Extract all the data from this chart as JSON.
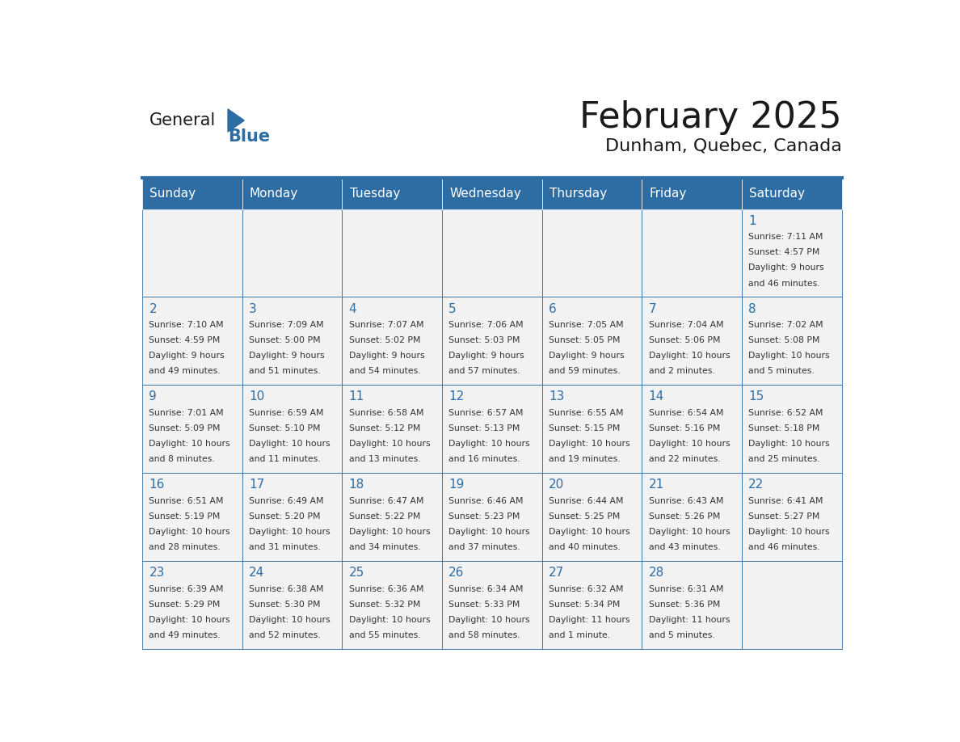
{
  "title": "February 2025",
  "subtitle": "Dunham, Quebec, Canada",
  "header_bg": "#2E6DA4",
  "header_text_color": "#FFFFFF",
  "cell_bg": "#F2F2F2",
  "border_color": "#2E6DA4",
  "day_names": [
    "Sunday",
    "Monday",
    "Tuesday",
    "Wednesday",
    "Thursday",
    "Friday",
    "Saturday"
  ],
  "days": [
    {
      "day": 1,
      "col": 6,
      "row": 0,
      "sunrise": "7:11 AM",
      "sunset": "4:57 PM",
      "daylight": "9 hours and 46 minutes."
    },
    {
      "day": 2,
      "col": 0,
      "row": 1,
      "sunrise": "7:10 AM",
      "sunset": "4:59 PM",
      "daylight": "9 hours and 49 minutes."
    },
    {
      "day": 3,
      "col": 1,
      "row": 1,
      "sunrise": "7:09 AM",
      "sunset": "5:00 PM",
      "daylight": "9 hours and 51 minutes."
    },
    {
      "day": 4,
      "col": 2,
      "row": 1,
      "sunrise": "7:07 AM",
      "sunset": "5:02 PM",
      "daylight": "9 hours and 54 minutes."
    },
    {
      "day": 5,
      "col": 3,
      "row": 1,
      "sunrise": "7:06 AM",
      "sunset": "5:03 PM",
      "daylight": "9 hours and 57 minutes."
    },
    {
      "day": 6,
      "col": 4,
      "row": 1,
      "sunrise": "7:05 AM",
      "sunset": "5:05 PM",
      "daylight": "9 hours and 59 minutes."
    },
    {
      "day": 7,
      "col": 5,
      "row": 1,
      "sunrise": "7:04 AM",
      "sunset": "5:06 PM",
      "daylight": "10 hours and 2 minutes."
    },
    {
      "day": 8,
      "col": 6,
      "row": 1,
      "sunrise": "7:02 AM",
      "sunset": "5:08 PM",
      "daylight": "10 hours and 5 minutes."
    },
    {
      "day": 9,
      "col": 0,
      "row": 2,
      "sunrise": "7:01 AM",
      "sunset": "5:09 PM",
      "daylight": "10 hours and 8 minutes."
    },
    {
      "day": 10,
      "col": 1,
      "row": 2,
      "sunrise": "6:59 AM",
      "sunset": "5:10 PM",
      "daylight": "10 hours and 11 minutes."
    },
    {
      "day": 11,
      "col": 2,
      "row": 2,
      "sunrise": "6:58 AM",
      "sunset": "5:12 PM",
      "daylight": "10 hours and 13 minutes."
    },
    {
      "day": 12,
      "col": 3,
      "row": 2,
      "sunrise": "6:57 AM",
      "sunset": "5:13 PM",
      "daylight": "10 hours and 16 minutes."
    },
    {
      "day": 13,
      "col": 4,
      "row": 2,
      "sunrise": "6:55 AM",
      "sunset": "5:15 PM",
      "daylight": "10 hours and 19 minutes."
    },
    {
      "day": 14,
      "col": 5,
      "row": 2,
      "sunrise": "6:54 AM",
      "sunset": "5:16 PM",
      "daylight": "10 hours and 22 minutes."
    },
    {
      "day": 15,
      "col": 6,
      "row": 2,
      "sunrise": "6:52 AM",
      "sunset": "5:18 PM",
      "daylight": "10 hours and 25 minutes."
    },
    {
      "day": 16,
      "col": 0,
      "row": 3,
      "sunrise": "6:51 AM",
      "sunset": "5:19 PM",
      "daylight": "10 hours and 28 minutes."
    },
    {
      "day": 17,
      "col": 1,
      "row": 3,
      "sunrise": "6:49 AM",
      "sunset": "5:20 PM",
      "daylight": "10 hours and 31 minutes."
    },
    {
      "day": 18,
      "col": 2,
      "row": 3,
      "sunrise": "6:47 AM",
      "sunset": "5:22 PM",
      "daylight": "10 hours and 34 minutes."
    },
    {
      "day": 19,
      "col": 3,
      "row": 3,
      "sunrise": "6:46 AM",
      "sunset": "5:23 PM",
      "daylight": "10 hours and 37 minutes."
    },
    {
      "day": 20,
      "col": 4,
      "row": 3,
      "sunrise": "6:44 AM",
      "sunset": "5:25 PM",
      "daylight": "10 hours and 40 minutes."
    },
    {
      "day": 21,
      "col": 5,
      "row": 3,
      "sunrise": "6:43 AM",
      "sunset": "5:26 PM",
      "daylight": "10 hours and 43 minutes."
    },
    {
      "day": 22,
      "col": 6,
      "row": 3,
      "sunrise": "6:41 AM",
      "sunset": "5:27 PM",
      "daylight": "10 hours and 46 minutes."
    },
    {
      "day": 23,
      "col": 0,
      "row": 4,
      "sunrise": "6:39 AM",
      "sunset": "5:29 PM",
      "daylight": "10 hours and 49 minutes."
    },
    {
      "day": 24,
      "col": 1,
      "row": 4,
      "sunrise": "6:38 AM",
      "sunset": "5:30 PM",
      "daylight": "10 hours and 52 minutes."
    },
    {
      "day": 25,
      "col": 2,
      "row": 4,
      "sunrise": "6:36 AM",
      "sunset": "5:32 PM",
      "daylight": "10 hours and 55 minutes."
    },
    {
      "day": 26,
      "col": 3,
      "row": 4,
      "sunrise": "6:34 AM",
      "sunset": "5:33 PM",
      "daylight": "10 hours and 58 minutes."
    },
    {
      "day": 27,
      "col": 4,
      "row": 4,
      "sunrise": "6:32 AM",
      "sunset": "5:34 PM",
      "daylight": "11 hours and 1 minute."
    },
    {
      "day": 28,
      "col": 5,
      "row": 4,
      "sunrise": "6:31 AM",
      "sunset": "5:36 PM",
      "daylight": "11 hours and 5 minutes."
    }
  ],
  "num_rows": 5,
  "num_cols": 7,
  "logo_general_color": "#1a1a1a",
  "logo_blue_color": "#2E6DA4",
  "logo_triangle_color": "#2E6DA4",
  "title_color": "#1a1a1a",
  "day_number_color": "#2E6DA4",
  "text_color": "#333333"
}
